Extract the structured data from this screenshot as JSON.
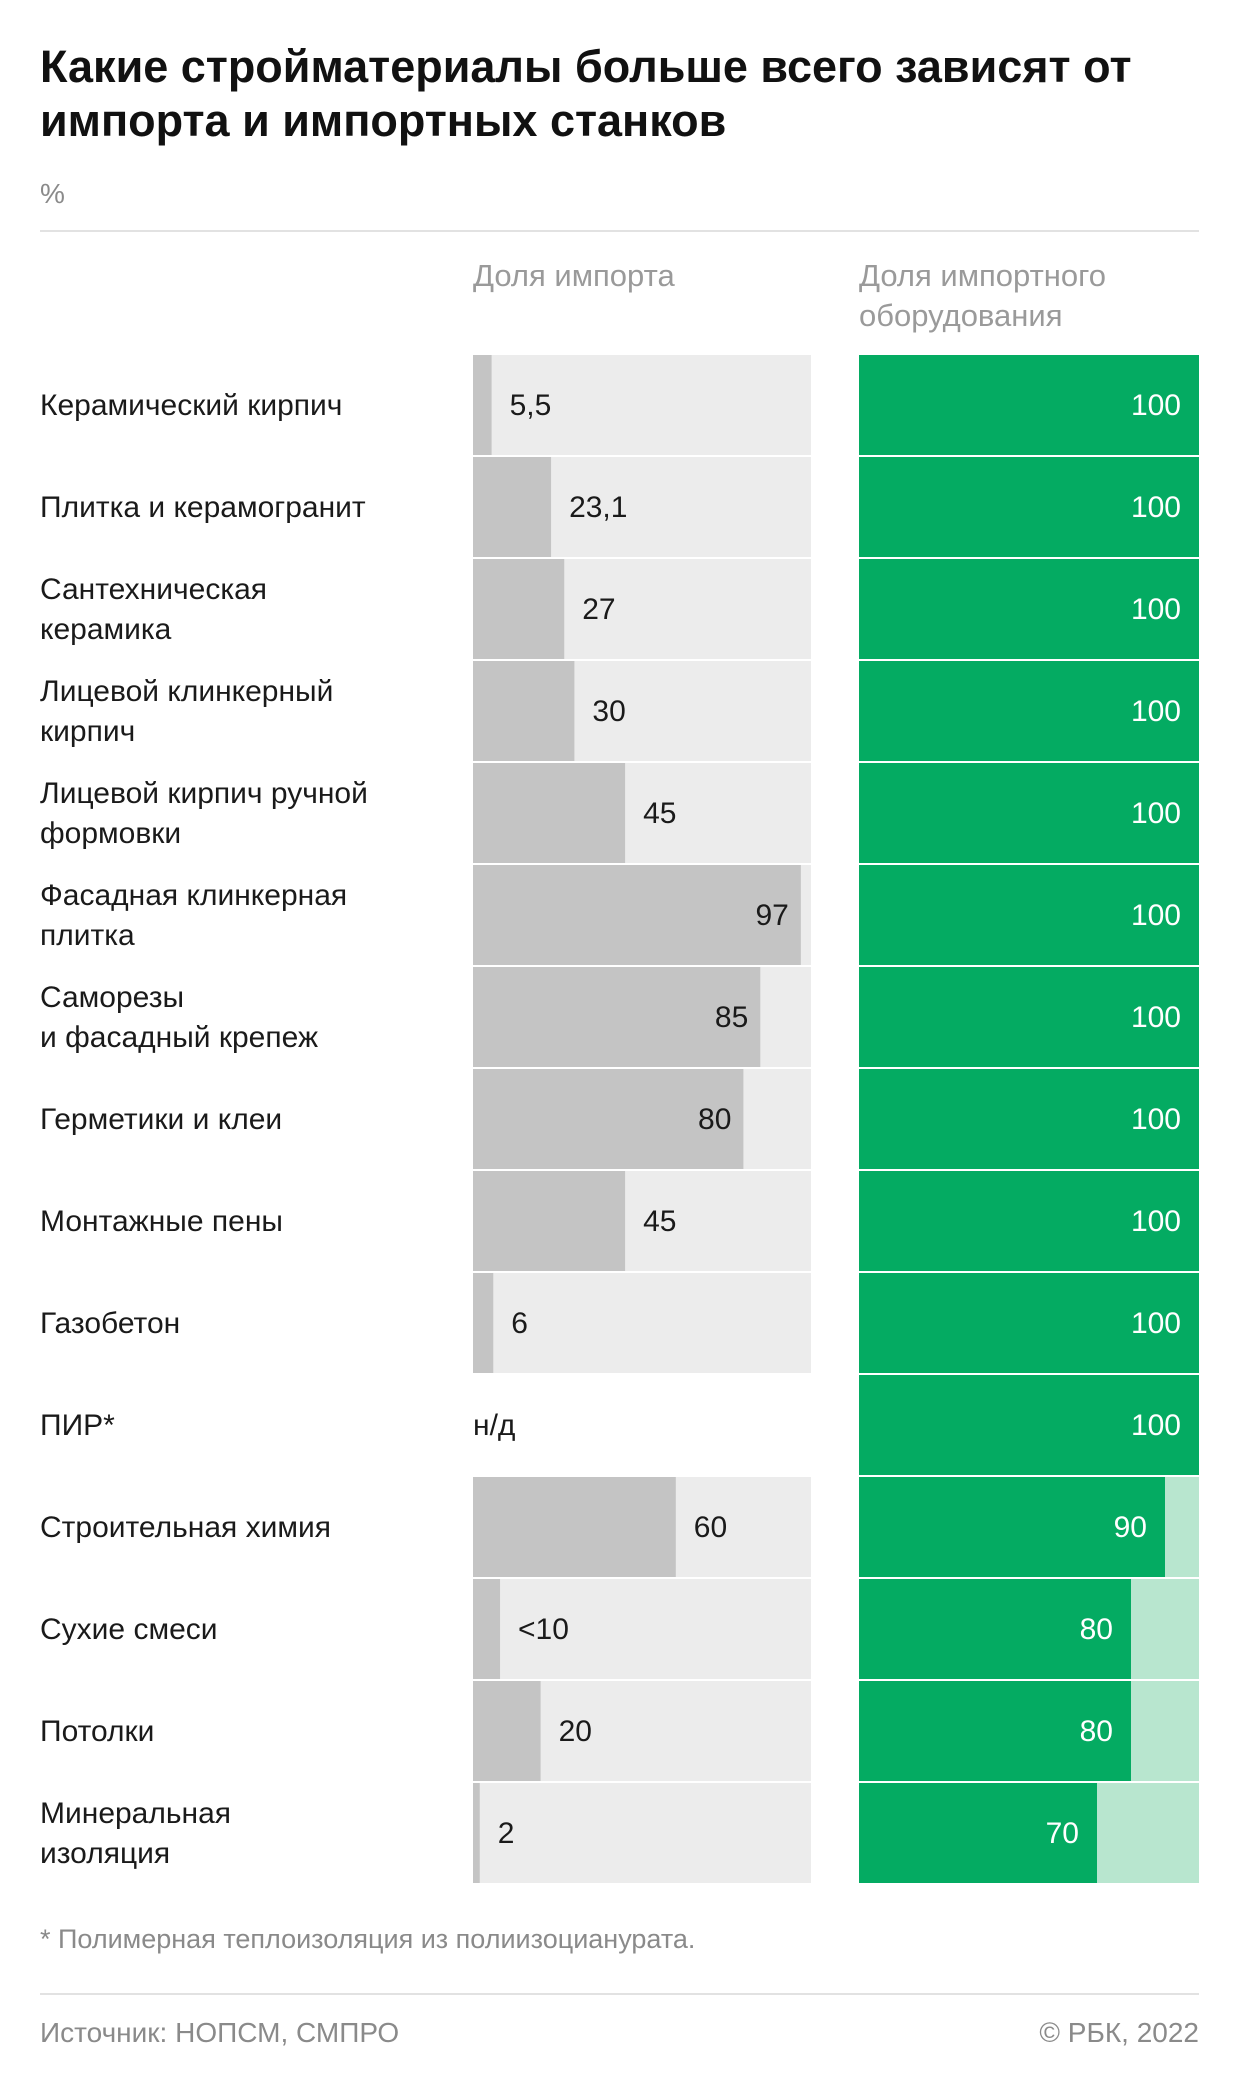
{
  "title": "Какие стройматериалы больше всего зависят от импорта и импортных станков",
  "unit": "%",
  "columns": {
    "import_share": "Доля импорта",
    "equipment_share": "Доля импортного\nоборудования"
  },
  "footnote": "* Полимерная теплоизоляция из полиизоцианурата.",
  "source": "Источник: НОПСМ, СМПРО",
  "copyright": "© РБК, 2022",
  "colors": {
    "import_bar": "#c4c4c4",
    "import_track": "#ececec",
    "equipment_bar": "#04ab62",
    "equipment_track": "#b8e6cf",
    "label_text": "#1a1a1a",
    "equipment_value_text": "#ffffff"
  },
  "chart_data": {
    "type": "bar",
    "orientation": "horizontal",
    "xlim": [
      0,
      100
    ],
    "categories": [
      "Керамический кирпич",
      "Плитка и керамогранит",
      "Сантехническая\nкерамика",
      "Лицевой клинкерный\nкирпич",
      "Лицевой кирпич ручной\nформовки",
      "Фасадная клинкерная\nплитка",
      "Саморезы\nи фасадный крепеж",
      "Герметики и клеи",
      "Монтажные пены",
      "Газобетон",
      "ПИР*",
      "Строительная химия",
      "Сухие смеси",
      "Потолки",
      "Минеральная\nизоляция"
    ],
    "series": [
      {
        "name": "Доля импорта",
        "values": [
          5.5,
          23.1,
          27,
          30,
          45,
          97,
          85,
          80,
          45,
          6,
          null,
          60,
          8,
          20,
          2
        ],
        "labels": [
          "5,5",
          "23,1",
          "27",
          "30",
          "45",
          "97",
          "85",
          "80",
          "45",
          "6",
          "н/д",
          "60",
          "<10",
          "20",
          "2"
        ]
      },
      {
        "name": "Доля импортного оборудования",
        "values": [
          100,
          100,
          100,
          100,
          100,
          100,
          100,
          100,
          100,
          100,
          100,
          90,
          80,
          80,
          70
        ],
        "labels": [
          "100",
          "100",
          "100",
          "100",
          "100",
          "100",
          "100",
          "100",
          "100",
          "100",
          "100",
          "90",
          "80",
          "80",
          "70"
        ]
      }
    ]
  }
}
